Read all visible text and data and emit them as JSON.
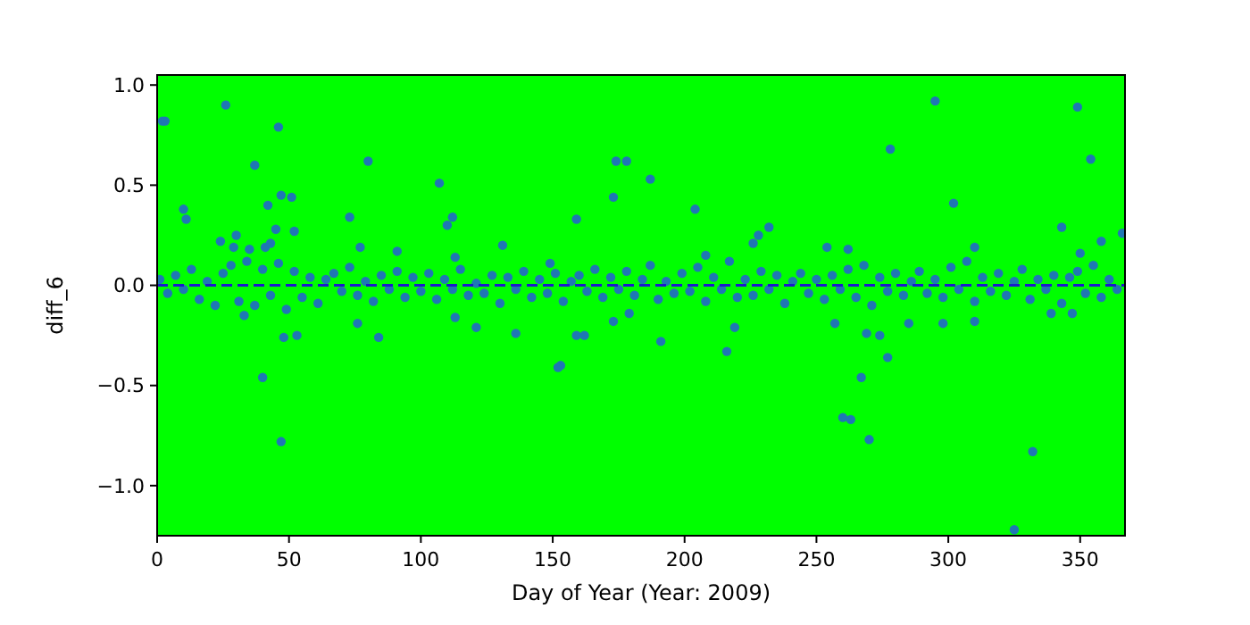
{
  "chart_data": {
    "type": "scatter",
    "xlabel": "Day of Year (Year: 2009)",
    "ylabel": "diff_6",
    "xlim": [
      0,
      367
    ],
    "ylim": [
      -1.25,
      1.05
    ],
    "xticks": [
      0,
      50,
      100,
      150,
      200,
      250,
      300,
      350
    ],
    "yticks": [
      {
        "value": -1,
        "label": "−1.0"
      },
      {
        "value": -0.5,
        "label": "−0.5"
      },
      {
        "value": 0,
        "label": "0.0"
      },
      {
        "value": 0.5,
        "label": "0.5"
      },
      {
        "value": 1,
        "label": "1.0"
      }
    ],
    "marker": "circle",
    "ref_lines": [
      {
        "axis": "y",
        "value": 0,
        "color": "#1a1acc",
        "line_style": "dashed"
      }
    ],
    "series": [
      {
        "color": "#1f77b4",
        "x": [
          1,
          4,
          7,
          10,
          13,
          16,
          19,
          22,
          25,
          28,
          31,
          34,
          37,
          40,
          43,
          46,
          49,
          52,
          55,
          58,
          61,
          64,
          67,
          70,
          73,
          76,
          79,
          82,
          85,
          88,
          91,
          94,
          97,
          100,
          103,
          106,
          109,
          112,
          115,
          118,
          121,
          124,
          127,
          130,
          133,
          136,
          139,
          142,
          145,
          148,
          151,
          154,
          157,
          160,
          163,
          166,
          169,
          172,
          175,
          178,
          181,
          184,
          187,
          190,
          193,
          196,
          199,
          202,
          205,
          208,
          211,
          214,
          217,
          220,
          223,
          226,
          229,
          232,
          235,
          238,
          241,
          244,
          247,
          250,
          253,
          256,
          259,
          262,
          265,
          268,
          271,
          274,
          277,
          280,
          283,
          286,
          289,
          292,
          295,
          298,
          301,
          304,
          307,
          310,
          313,
          316,
          319,
          322,
          325,
          328,
          331,
          334,
          337,
          340,
          343,
          346,
          349,
          352,
          355,
          358,
          361,
          364,
          2,
          3,
          26,
          46,
          37,
          80,
          10,
          11,
          42,
          47,
          51,
          45,
          52,
          30,
          24,
          29,
          35,
          41,
          43,
          107,
          110,
          112,
          73,
          77,
          91,
          131,
          159,
          174,
          178,
          173,
          113,
          149,
          187,
          204,
          232,
          226,
          228,
          278,
          295,
          302,
          349,
          354,
          343,
          366,
          358,
          350,
          254,
          262,
          310,
          208,
          40,
          47,
          48,
          53,
          84,
          76,
          33,
          153,
          152,
          159,
          162,
          136,
          121,
          113,
          173,
          179,
          191,
          216,
          219,
          267,
          260,
          263,
          270,
          269,
          274,
          277,
          332,
          325,
          257,
          285,
          298,
          310,
          347,
          339
        ],
        "values": [
          0.03,
          -0.04,
          0.05,
          -0.02,
          0.08,
          -0.07,
          0.02,
          -0.1,
          0.06,
          0.1,
          -0.08,
          0.12,
          -0.1,
          0.08,
          -0.05,
          0.11,
          -0.12,
          0.07,
          -0.06,
          0.04,
          -0.09,
          0.03,
          0.06,
          -0.03,
          0.09,
          -0.05,
          0.02,
          -0.08,
          0.05,
          -0.02,
          0.07,
          -0.06,
          0.04,
          -0.03,
          0.06,
          -0.07,
          0.03,
          -0.02,
          0.08,
          -0.05,
          0.01,
          -0.04,
          0.05,
          -0.09,
          0.04,
          -0.02,
          0.07,
          -0.06,
          0.03,
          -0.04,
          0.06,
          -0.08,
          0.02,
          0.05,
          -0.03,
          0.08,
          -0.06,
          0.04,
          -0.02,
          0.07,
          -0.05,
          0.03,
          0.1,
          -0.07,
          0.02,
          -0.04,
          0.06,
          -0.03,
          0.09,
          -0.08,
          0.04,
          -0.02,
          0.12,
          -0.06,
          0.03,
          -0.05,
          0.07,
          -0.02,
          0.05,
          -0.09,
          0.02,
          0.06,
          -0.04,
          0.03,
          -0.07,
          0.05,
          -0.02,
          0.08,
          -0.06,
          0.1,
          -0.1,
          0.04,
          -0.03,
          0.06,
          -0.05,
          0.02,
          0.07,
          -0.04,
          0.03,
          -0.06,
          0.09,
          -0.02,
          0.12,
          -0.08,
          0.04,
          -0.03,
          0.06,
          -0.05,
          0.02,
          0.08,
          -0.07,
          0.03,
          -0.02,
          0.05,
          -0.09,
          0.04,
          0.07,
          -0.04,
          0.1,
          -0.06,
          0.03,
          -0.02,
          0.82,
          0.82,
          0.9,
          0.79,
          0.6,
          0.62,
          0.38,
          0.33,
          0.4,
          0.45,
          0.44,
          0.28,
          0.27,
          0.25,
          0.22,
          0.19,
          0.18,
          0.19,
          0.21,
          0.51,
          0.3,
          0.34,
          0.34,
          0.19,
          0.17,
          0.2,
          0.33,
          0.62,
          0.62,
          0.44,
          0.14,
          0.11,
          0.53,
          0.38,
          0.29,
          0.21,
          0.25,
          0.68,
          0.92,
          0.41,
          0.89,
          0.63,
          0.29,
          0.26,
          0.22,
          0.16,
          0.19,
          0.18,
          0.19,
          0.15,
          -0.46,
          -0.78,
          -0.26,
          -0.25,
          -0.26,
          -0.19,
          -0.15,
          -0.4,
          -0.41,
          -0.25,
          -0.25,
          -0.24,
          -0.21,
          -0.16,
          -0.18,
          -0.14,
          -0.28,
          -0.33,
          -0.21,
          -0.46,
          -0.66,
          -0.67,
          -0.77,
          -0.24,
          -0.25,
          -0.36,
          -0.83,
          -1.22,
          -0.19,
          -0.19,
          -0.19,
          -0.18,
          -0.14,
          -0.14
        ]
      }
    ]
  }
}
